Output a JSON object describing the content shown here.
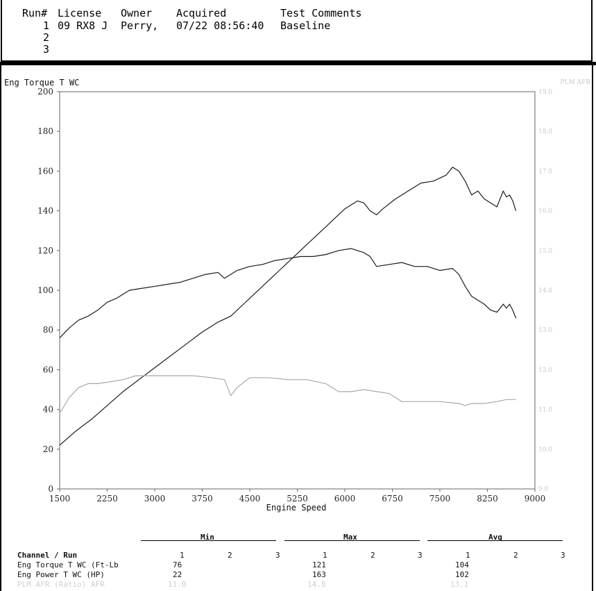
{
  "header": {
    "columns": [
      "Run#",
      "License",
      "Owner",
      "Acquired",
      "Test Comments"
    ],
    "runs": [
      {
        "run": "1",
        "license": "09 RX8 J",
        "owner": "Perry,",
        "acquired": "07/22 08:56:40",
        "comment": "Baseline"
      },
      {
        "run": "2",
        "license": "",
        "owner": "",
        "acquired": "",
        "comment": ""
      },
      {
        "run": "3",
        "license": "",
        "owner": "",
        "acquired": "",
        "comment": ""
      }
    ]
  },
  "chart_data": {
    "type": "line",
    "ylabel": "Eng Torque T WC",
    "y2label": "PLM AFR",
    "xlabel": "Engine Speed",
    "xlim": [
      1500,
      9000
    ],
    "ylim": [
      0,
      200
    ],
    "xticks": [
      1500,
      2250,
      3000,
      3750,
      4500,
      5250,
      6000,
      6750,
      7500,
      8250,
      9000
    ],
    "yticks": [
      0,
      20,
      40,
      60,
      80,
      100,
      120,
      140,
      160,
      180,
      200
    ],
    "y2ticks": [
      "9.0",
      "10.0",
      "11.0",
      "12.0",
      "13.0",
      "14.0",
      "15.0",
      "16.0",
      "17.0",
      "18.0",
      "19.0"
    ],
    "grid": false,
    "series": [
      {
        "name": "Eng Torque T WC",
        "color": "#1a1a1a",
        "x": [
          1500,
          1650,
          1800,
          1950,
          2100,
          2250,
          2400,
          2600,
          2800,
          3000,
          3200,
          3400,
          3600,
          3800,
          4000,
          4100,
          4200,
          4300,
          4500,
          4700,
          4900,
          5100,
          5300,
          5500,
          5700,
          5900,
          6100,
          6300,
          6400,
          6500,
          6700,
          6900,
          7100,
          7300,
          7500,
          7700,
          7800,
          7900,
          8000,
          8100,
          8200,
          8300,
          8400,
          8500,
          8550,
          8600,
          8650,
          8700
        ],
        "y": [
          76,
          81,
          85,
          87,
          90,
          94,
          96,
          100,
          101,
          102,
          103,
          104,
          106,
          108,
          109,
          106,
          108,
          110,
          112,
          113,
          115,
          116,
          117,
          117,
          118,
          120,
          121,
          119,
          117,
          112,
          113,
          114,
          112,
          112,
          110,
          111,
          108,
          102,
          97,
          95,
          93,
          90,
          89,
          93,
          91,
          93,
          90,
          86
        ]
      },
      {
        "name": "Eng Power T WC",
        "color": "#1a1a1a",
        "x": [
          1500,
          1750,
          2000,
          2250,
          2500,
          2750,
          3000,
          3250,
          3500,
          3750,
          4000,
          4200,
          4400,
          4600,
          4800,
          5000,
          5200,
          5400,
          5600,
          5800,
          6000,
          6200,
          6300,
          6400,
          6500,
          6600,
          6800,
          7000,
          7200,
          7400,
          7600,
          7700,
          7800,
          7900,
          8000,
          8100,
          8200,
          8300,
          8400,
          8500,
          8550,
          8600,
          8650,
          8700
        ],
        "y": [
          22,
          29,
          35,
          42,
          49,
          55,
          61,
          67,
          73,
          79,
          84,
          87,
          93,
          99,
          105,
          111,
          117,
          123,
          129,
          135,
          141,
          145,
          144,
          140,
          138,
          141,
          146,
          150,
          154,
          155,
          158,
          162,
          160,
          155,
          148,
          150,
          146,
          144,
          142,
          150,
          147,
          148,
          145,
          140
        ]
      },
      {
        "name": "PLM AFR",
        "color": "#a8a8a8",
        "x": [
          1500,
          1650,
          1800,
          1950,
          2100,
          2300,
          2500,
          2700,
          3000,
          3300,
          3600,
          3900,
          4100,
          4200,
          4300,
          4500,
          4800,
          5100,
          5400,
          5700,
          5900,
          6100,
          6300,
          6500,
          6700,
          6900,
          7200,
          7500,
          7800,
          7900,
          8000,
          8200,
          8400,
          8550,
          8700
        ],
        "y": [
          38,
          46,
          51,
          53,
          53,
          54,
          55,
          57,
          57,
          57,
          57,
          56,
          55,
          47,
          51,
          56,
          56,
          55,
          55,
          53,
          49,
          49,
          50,
          49,
          48,
          44,
          44,
          44,
          43,
          42,
          43,
          43,
          44,
          45,
          45
        ]
      }
    ]
  },
  "table": {
    "groups": [
      "Min",
      "Max",
      "Avg"
    ],
    "header_label": "Channel / Run",
    "run_numbers": [
      "1",
      "2",
      "3"
    ],
    "rows": [
      {
        "label": "Eng Torque T WC (Ft-Lb",
        "min": "76",
        "max": "121",
        "avg": "104"
      },
      {
        "label": "Eng Power T WC (HP)",
        "min": "22",
        "max": "163",
        "avg": "102"
      },
      {
        "label": "PLM AFR (Ratio) AFR",
        "min": "11.0",
        "max": "14.8",
        "avg": "13.1"
      }
    ]
  }
}
